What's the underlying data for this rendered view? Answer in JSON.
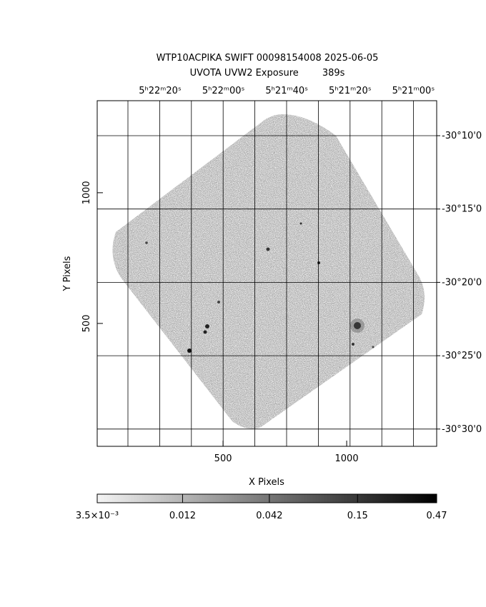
{
  "chart_data": {
    "type": "image",
    "title": "WTP10ACPIKA SWIFT 00098154008 2025-06-05",
    "subtitle": "UVOTA UVW2 Exposure        389s",
    "x_label": "X Pixels",
    "y_label": "Y Pixels",
    "xlim": [
      -9,
      1364
    ],
    "xticks": [
      500,
      1000
    ],
    "ylim": [
      30,
      1352
    ],
    "yticks": [
      500,
      1000
    ],
    "ra_ticks": [
      "5ʰ22ᵐ20ˢ",
      "5ʰ22ᵐ00ˢ",
      "5ʰ21ᵐ40ˢ",
      "5ʰ21ᵐ20ˢ",
      "5ʰ21ᵐ00ˢ"
    ],
    "dec_ticks": [
      "-30°10'0",
      "-30°15'0",
      "-30°20'0",
      "-30°25'0",
      "-30°30'0"
    ],
    "colorbar": {
      "lim": [
        0.0035,
        0.47
      ],
      "log": true,
      "ticks": [
        {
          "value": 0.0035,
          "label": "3.5×10⁻³"
        },
        0.012,
        0.042,
        0.15,
        0.47
      ]
    }
  }
}
